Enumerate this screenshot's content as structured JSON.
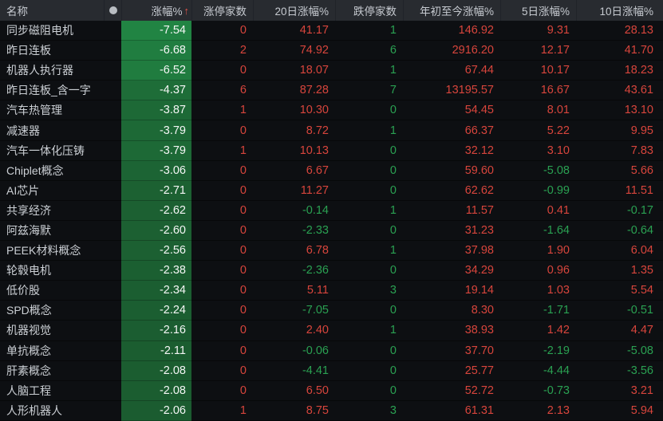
{
  "colors": {
    "red": "#d8453c",
    "green": "#2aa152",
    "chg_bg_high": "#218443",
    "chg_bg_low": "#1b5c30",
    "header_bg": "#282b30"
  },
  "header": {
    "name": "名称",
    "dot_icon": "settings-dot",
    "chg": "涨幅%",
    "sort_arrow": "↑",
    "limit_up": "涨停家数",
    "d20": "20日涨幅%",
    "limit_down": "跌停家数",
    "ytd": "年初至今涨幅%",
    "d5": "5日涨幅%",
    "d10": "10日涨幅%"
  },
  "rows": [
    {
      "name": "同步磁阻电机",
      "chg": "-7.54",
      "limit_up": "0",
      "d20": "41.17",
      "limit_down": "1",
      "ytd": "146.92",
      "d5": "9.31",
      "d10": "28.13"
    },
    {
      "name": "昨日连板",
      "chg": "-6.68",
      "limit_up": "2",
      "d20": "74.92",
      "limit_down": "6",
      "ytd": "2916.20",
      "d5": "12.17",
      "d10": "41.70"
    },
    {
      "name": "机器人执行器",
      "chg": "-6.52",
      "limit_up": "0",
      "d20": "18.07",
      "limit_down": "1",
      "ytd": "67.44",
      "d5": "10.17",
      "d10": "18.23"
    },
    {
      "name": "昨日连板_含一字",
      "chg": "-4.37",
      "limit_up": "6",
      "d20": "87.28",
      "limit_down": "7",
      "ytd": "13195.57",
      "d5": "16.67",
      "d10": "43.61"
    },
    {
      "name": "汽车热管理",
      "chg": "-3.87",
      "limit_up": "1",
      "d20": "10.30",
      "limit_down": "0",
      "ytd": "54.45",
      "d5": "8.01",
      "d10": "13.10"
    },
    {
      "name": "减速器",
      "chg": "-3.79",
      "limit_up": "0",
      "d20": "8.72",
      "limit_down": "1",
      "ytd": "66.37",
      "d5": "5.22",
      "d10": "9.95"
    },
    {
      "name": "汽车一体化压铸",
      "chg": "-3.79",
      "limit_up": "1",
      "d20": "10.13",
      "limit_down": "0",
      "ytd": "32.12",
      "d5": "3.10",
      "d10": "7.83"
    },
    {
      "name": "Chiplet概念",
      "chg": "-3.06",
      "limit_up": "0",
      "d20": "6.67",
      "limit_down": "0",
      "ytd": "59.60",
      "d5": "-5.08",
      "d10": "5.66"
    },
    {
      "name": "AI芯片",
      "chg": "-2.71",
      "limit_up": "0",
      "d20": "11.27",
      "limit_down": "0",
      "ytd": "62.62",
      "d5": "-0.99",
      "d10": "11.51"
    },
    {
      "name": "共享经济",
      "chg": "-2.62",
      "limit_up": "0",
      "d20": "-0.14",
      "limit_down": "1",
      "ytd": "11.57",
      "d5": "0.41",
      "d10": "-0.17"
    },
    {
      "name": "阿兹海默",
      "chg": "-2.60",
      "limit_up": "0",
      "d20": "-2.33",
      "limit_down": "0",
      "ytd": "31.23",
      "d5": "-1.64",
      "d10": "-0.64"
    },
    {
      "name": "PEEK材料概念",
      "chg": "-2.56",
      "limit_up": "0",
      "d20": "6.78",
      "limit_down": "1",
      "ytd": "37.98",
      "d5": "1.90",
      "d10": "6.04"
    },
    {
      "name": "轮毂电机",
      "chg": "-2.38",
      "limit_up": "0",
      "d20": "-2.36",
      "limit_down": "0",
      "ytd": "34.29",
      "d5": "0.96",
      "d10": "1.35"
    },
    {
      "name": "低价股",
      "chg": "-2.34",
      "limit_up": "0",
      "d20": "5.11",
      "limit_down": "3",
      "ytd": "19.14",
      "d5": "1.03",
      "d10": "5.54"
    },
    {
      "name": "SPD概念",
      "chg": "-2.24",
      "limit_up": "0",
      "d20": "-7.05",
      "limit_down": "0",
      "ytd": "8.30",
      "d5": "-1.71",
      "d10": "-0.51"
    },
    {
      "name": "机器视觉",
      "chg": "-2.16",
      "limit_up": "0",
      "d20": "2.40",
      "limit_down": "1",
      "ytd": "38.93",
      "d5": "1.42",
      "d10": "4.47"
    },
    {
      "name": "单抗概念",
      "chg": "-2.11",
      "limit_up": "0",
      "d20": "-0.06",
      "limit_down": "0",
      "ytd": "37.70",
      "d5": "-2.19",
      "d10": "-5.08"
    },
    {
      "name": "肝素概念",
      "chg": "-2.08",
      "limit_up": "0",
      "d20": "-4.41",
      "limit_down": "0",
      "ytd": "25.77",
      "d5": "-4.44",
      "d10": "-3.56"
    },
    {
      "name": "人脑工程",
      "chg": "-2.08",
      "limit_up": "0",
      "d20": "6.50",
      "limit_down": "0",
      "ytd": "52.72",
      "d5": "-0.73",
      "d10": "3.21"
    },
    {
      "name": "人形机器人",
      "chg": "-2.06",
      "limit_up": "1",
      "d20": "8.75",
      "limit_down": "3",
      "ytd": "61.31",
      "d5": "2.13",
      "d10": "5.94"
    }
  ]
}
